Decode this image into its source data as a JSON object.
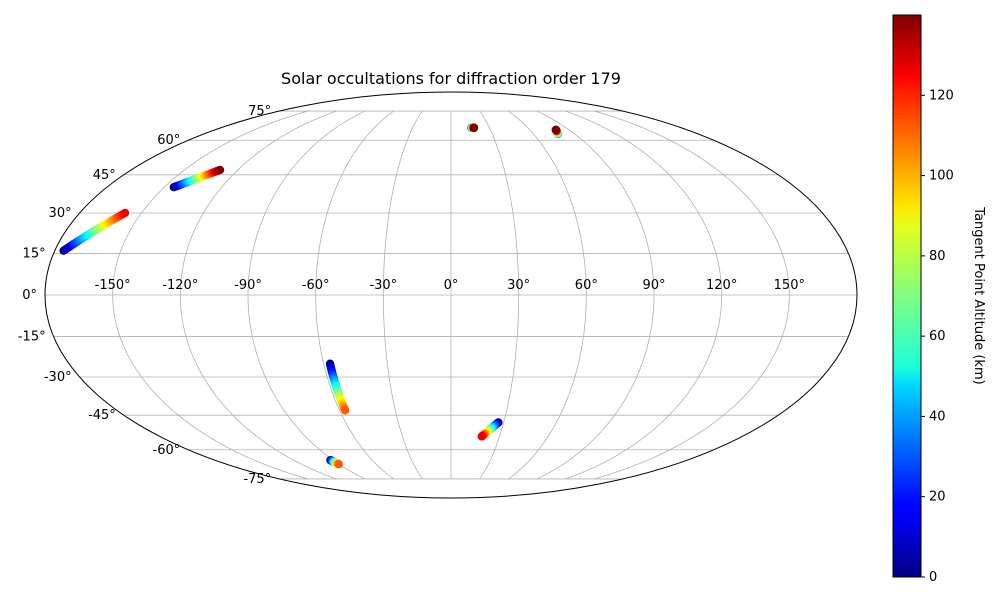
{
  "chart_data": {
    "type": "scatter",
    "projection": "mollweide",
    "title": "Solar occultations for diffraction order 179",
    "grid": true,
    "lon_ticks": [
      "-150°",
      "-120°",
      "-90°",
      "-60°",
      "-30°",
      "0°",
      "30°",
      "60°",
      "90°",
      "120°",
      "150°"
    ],
    "lat_ticks": [
      "75°",
      "60°",
      "45°",
      "30°",
      "15°",
      "0°",
      "-15°",
      "-30°",
      "-45°",
      "-60°",
      "-75°"
    ],
    "colorbar": {
      "label": "Tangent Point Altitude (km)",
      "colormap": "jet",
      "range": [
        0,
        140
      ],
      "ticks": [
        "0",
        "20",
        "40",
        "60",
        "80",
        "100",
        "120"
      ]
    },
    "tracks": [
      {
        "lon_start": -176,
        "lat_start": 16,
        "lon_end": -158,
        "lat_end": 30,
        "alt_start": 0,
        "alt_end": 125
      },
      {
        "lon_start": -145,
        "lat_start": 40,
        "lon_end": -130,
        "lat_end": 47,
        "alt_start": 0,
        "alt_end": 140
      },
      {
        "lon_start": 16,
        "lat_start": 66,
        "lon_end": 18,
        "lat_end": 66,
        "alt_start": 20,
        "alt_end": 140
      },
      {
        "lon_start": 78,
        "lat_start": 63,
        "lon_end": 80,
        "lat_end": 65,
        "alt_start": 40,
        "alt_end": 140
      },
      {
        "lon_start": -57,
        "lat_start": -25,
        "lon_end": -57,
        "lat_end": -43,
        "alt_start": 0,
        "alt_end": 110
      },
      {
        "lon_start": -92,
        "lat_start": -65,
        "lon_end": -90,
        "lat_end": -67,
        "alt_start": 0,
        "alt_end": 110
      },
      {
        "lon_start": 27,
        "lat_start": -48,
        "lon_end": 19,
        "lat_end": -54,
        "alt_start": 0,
        "alt_end": 125
      }
    ]
  }
}
